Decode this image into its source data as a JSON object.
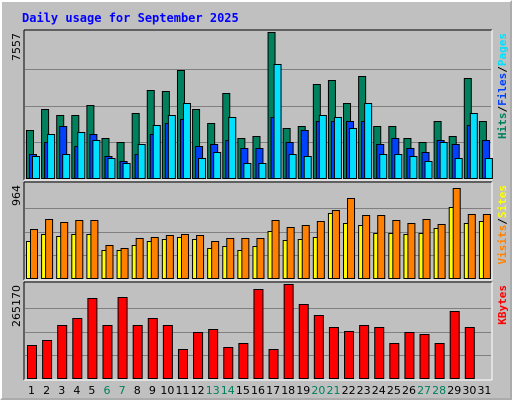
{
  "colors": {
    "hits": "#00805c",
    "files": "#0040ff",
    "pages": "#00e0ff",
    "visits": "#ff8000",
    "sites": "#ffff00",
    "kbytes": "#ff0000",
    "title": "#0000ff",
    "weekday": "#000000",
    "weekend": "#00805c",
    "plot_bg": "#c0c0c0",
    "grid": "#808080"
  },
  "chart_data": {
    "type": "bar",
    "title": "Daily usage for September 2025",
    "days": [
      "1",
      "2",
      "3",
      "4",
      "5",
      "6",
      "7",
      "8",
      "9",
      "10",
      "11",
      "12",
      "13",
      "14",
      "15",
      "16",
      "17",
      "18",
      "19",
      "20",
      "21",
      "22",
      "23",
      "24",
      "25",
      "26",
      "27",
      "28",
      "29",
      "30",
      "31"
    ],
    "weekend_days": [
      6,
      7,
      13,
      14,
      20,
      21,
      27,
      28
    ],
    "panels": [
      {
        "id": "hits-files-pages",
        "scale_label": "7557",
        "ymax": 7557,
        "legend": [
          {
            "text": "Hits",
            "color_key": "hits"
          },
          {
            "text": "/",
            "color_key": "sep"
          },
          {
            "text": "Files",
            "color_key": "files"
          },
          {
            "text": "/",
            "color_key": "sep"
          },
          {
            "text": "Pages",
            "color_key": "pages"
          }
        ],
        "series": [
          {
            "name": "Hits",
            "color_key": "hits",
            "values": [
              2500,
              3600,
              3300,
              3300,
              3800,
              2100,
              1900,
              3400,
              4600,
              4500,
              5600,
              3600,
              2900,
              4400,
              2100,
              2200,
              7557,
              2600,
              2700,
              4900,
              5100,
              3900,
              5300,
              2700,
              2700,
              2100,
              1900,
              3000,
              2200,
              5200,
              3000
            ]
          },
          {
            "name": "Files",
            "color_key": "files",
            "values": [
              1300,
              1900,
              2700,
              1700,
              2300,
              1200,
              900,
              1300,
              2300,
              2900,
              3100,
              1700,
              1800,
              2000,
              1600,
              1600,
              3200,
              1900,
              2500,
              3000,
              3000,
              3000,
              3000,
              1800,
              2100,
              1600,
              1400,
              2000,
              1800,
              2800,
              2000
            ]
          },
          {
            "name": "Pages",
            "color_key": "pages",
            "values": [
              1200,
              2300,
              1300,
              2400,
              2000,
              1100,
              800,
              1800,
              2800,
              3300,
              3900,
              1100,
              1400,
              3200,
              800,
              800,
              5900,
              1300,
              1200,
              3300,
              3200,
              2600,
              3900,
              1300,
              1300,
              1200,
              900,
              1900,
              1100,
              3400,
              1100
            ]
          }
        ]
      },
      {
        "id": "visits-sites",
        "scale_label": "964",
        "ymax": 964,
        "legend": [
          {
            "text": "Visits",
            "color_key": "visits"
          },
          {
            "text": "/",
            "color_key": "sep"
          },
          {
            "text": "Sites",
            "color_key": "sites"
          }
        ],
        "series": [
          {
            "name": "Sites",
            "color_key": "sites",
            "values": [
              390,
              460,
              440,
              460,
              460,
              290,
              290,
              350,
              390,
              410,
              430,
              410,
              310,
              330,
              290,
              330,
              490,
              400,
              410,
              430,
              670,
              570,
              550,
              470,
              470,
              460,
              470,
              520,
              730,
              570,
              590
            ]
          },
          {
            "name": "Visits",
            "color_key": "visits",
            "values": [
              510,
              610,
              580,
              600,
              600,
              350,
              310,
              420,
              430,
              450,
              460,
              450,
              390,
              420,
              420,
              420,
              600,
              530,
              550,
              590,
              700,
              820,
              650,
              650,
              600,
              570,
              610,
              560,
              920,
              660,
              660
            ]
          }
        ]
      },
      {
        "id": "kbytes",
        "scale_label": "265170",
        "ymax": 265170,
        "legend": [
          {
            "text": "KBytes",
            "color_key": "kbytes"
          }
        ],
        "series": [
          {
            "name": "KBytes",
            "color_key": "kbytes",
            "values": [
              95000,
              110000,
              150000,
              170000,
              225000,
              150000,
              230000,
              150000,
              170000,
              150000,
              85000,
              130000,
              140000,
              90000,
              100000,
              250000,
              85000,
              265170,
              210000,
              180000,
              145000,
              135000,
              150000,
              145000,
              100000,
              130000,
              125000,
              100000,
              190000,
              145000,
              0
            ]
          }
        ]
      }
    ]
  }
}
